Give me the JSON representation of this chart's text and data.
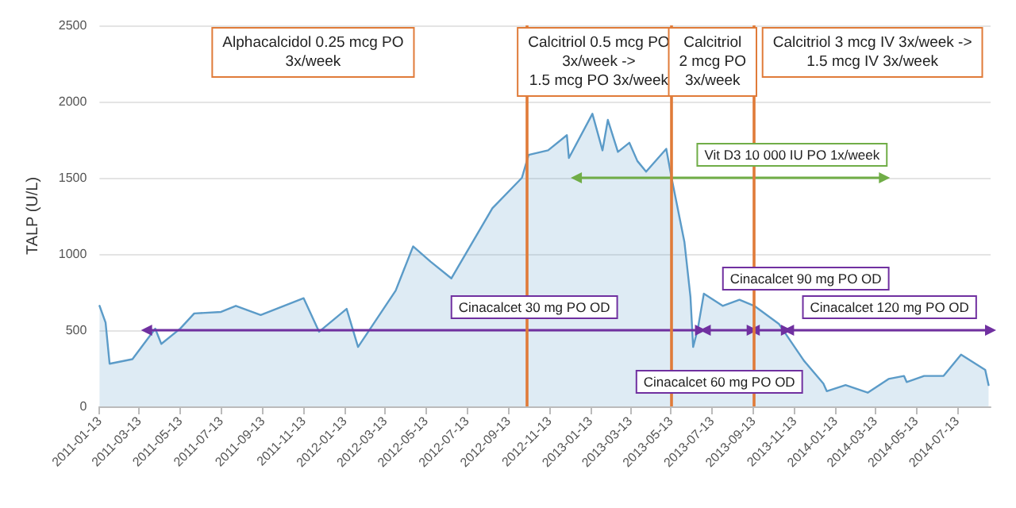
{
  "chart_data": {
    "type": "area",
    "ylabel": "TALP (U/L)",
    "xlim": [
      "2011-01-13",
      "2014-09-01"
    ],
    "ylim": [
      0,
      2500
    ],
    "xticks": [
      "2011-01-13",
      "2011-03-13",
      "2011-05-13",
      "2011-07-13",
      "2011-09-13",
      "2011-11-13",
      "2012-01-13",
      "2012-03-13",
      "2012-05-13",
      "2012-07-13",
      "2012-09-13",
      "2012-11-13",
      "2013-01-13",
      "2013-03-13",
      "2013-05-13",
      "2013-07-13",
      "2013-09-13",
      "2013-11-13",
      "2014-01-13",
      "2014-03-13",
      "2014-05-13",
      "2014-07-13"
    ],
    "yticks": [
      0,
      500,
      1000,
      1500,
      2000,
      2500
    ],
    "grid": "y",
    "marker": "none",
    "line_style": "solid",
    "series": [
      {
        "color": "#5b9bc8",
        "x": [
          "2011-01-13",
          "2011-01-22",
          "2011-01-28",
          "2011-03-03",
          "2011-04-06",
          "2011-04-15",
          "2011-05-13",
          "2011-06-03",
          "2011-07-13",
          "2011-08-04",
          "2011-09-10",
          "2011-11-13",
          "2011-12-06",
          "2012-01-16",
          "2012-02-02",
          "2012-03-29",
          "2012-04-24",
          "2012-05-20",
          "2012-06-20",
          "2012-08-20",
          "2012-10-03",
          "2012-10-13",
          "2012-11-11",
          "2012-12-09",
          "2012-12-12",
          "2013-01-16",
          "2013-01-31",
          "2013-02-08",
          "2013-02-23",
          "2013-03-12",
          "2013-03-24",
          "2013-04-06",
          "2013-05-06",
          "2013-05-13",
          "2013-06-02",
          "2013-06-11",
          "2013-06-15",
          "2013-06-22",
          "2013-07-01",
          "2013-07-29",
          "2013-08-23",
          "2013-09-14",
          "2013-10-21",
          "2013-11-27",
          "2013-12-26",
          "2013-12-31",
          "2014-01-28",
          "2014-03-02",
          "2014-04-02",
          "2014-04-25",
          "2014-04-29",
          "2014-05-25",
          "2014-06-23",
          "2014-07-19",
          "2014-08-24",
          "2014-08-29"
        ],
        "values": [
          660,
          550,
          280,
          310,
          510,
          410,
          510,
          610,
          620,
          660,
          600,
          710,
          490,
          640,
          390,
          760,
          1050,
          950,
          840,
          1300,
          1500,
          1650,
          1680,
          1780,
          1630,
          1920,
          1680,
          1880,
          1670,
          1730,
          1610,
          1540,
          1690,
          1520,
          1080,
          720,
          390,
          510,
          740,
          660,
          700,
          660,
          540,
          300,
          150,
          100,
          140,
          90,
          180,
          200,
          160,
          200,
          200,
          340,
          240,
          140
        ]
      },
      {
        "type": "line",
        "name": "Vit D3 10 000 IU PO 1x/week",
        "color": "#70ad47",
        "marker": "triangle",
        "x": [
          "2012-12-23",
          "2014-03-27"
        ],
        "values": [
          1500,
          1500
        ]
      },
      {
        "type": "line",
        "name": "Cinacalcet 30 mg PO OD",
        "color": "#7030a0",
        "marker": "triangle",
        "x": [
          "2011-03-24",
          "2013-06-26"
        ],
        "values": [
          500,
          500
        ]
      },
      {
        "type": "line",
        "name": "Cinacalcet 60 mg PO OD",
        "color": "#7030a0",
        "marker": "triangle",
        "x": [
          "2013-07-03",
          "2013-09-11"
        ],
        "values": [
          500,
          500
        ]
      },
      {
        "type": "line",
        "name": "Cinacalcet 90 mg PO OD",
        "color": "#7030a0",
        "marker": "triangle",
        "x": [
          "2013-09-14",
          "2013-11-01"
        ],
        "values": [
          500,
          500
        ]
      },
      {
        "type": "line",
        "name": "Cinacalcet 120 mg PO OD",
        "color": "#7030a0",
        "marker": "triangle",
        "x": [
          "2013-11-04",
          "2014-09-01"
        ],
        "values": [
          500,
          500
        ]
      }
    ],
    "ref_lines": [
      {
        "axis": "x",
        "value": "2012-10-10",
        "color": "#e07b39"
      },
      {
        "axis": "x",
        "value": "2013-05-13",
        "color": "#e07b39"
      },
      {
        "axis": "x",
        "value": "2013-09-14",
        "color": "#e07b39"
      }
    ],
    "annotations": [
      "Alphacalcidol 0.25 mcg PO\n3x/week",
      "Calcitriol 0.5 mcg PO\n3x/week ->\n1.5 mcg PO 3x/week",
      "Calcitriol\n2 mcg PO\n3x/week",
      "Calcitriol 3 mcg IV 3x/week ->\n1.5 mcg IV 3x/week"
    ]
  }
}
